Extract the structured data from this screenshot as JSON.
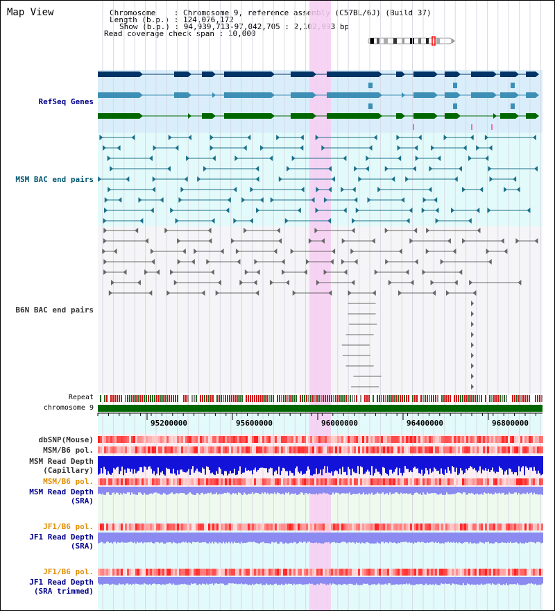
{
  "map_title": "Map View",
  "info": {
    "chromosome_label": "Chromosome",
    "chromosome_value": "Chromosome 9, reference assembly (C57BL/6J) (Build 37)",
    "length_label": "Length (b.p.)",
    "length_value": "124,076,172",
    "show_label": "Show (b.p.)",
    "show_value": "94,939,713-97,042,705 : 2,102,993 bp",
    "coverage_label": "Read coverage check span",
    "coverage_value": "10,000"
  },
  "tracks": {
    "refseq": "RefSeq Genes",
    "msm_bac": "MSM BAC end pairs",
    "b6n_bac": "B6N BAC end pairs",
    "repeat": "Repeat",
    "chromosome": "chromosome 9",
    "dbsnp": "dbSNP(Mouse)",
    "msm_b6_pol_1": "MSM/B6 pol.",
    "msm_depth_cap": "MSM Read Depth\n(Capillary)",
    "msm_b6_pol_2": "MSM/B6 pol.",
    "msm_depth_sra": "MSM Read Depth\n(SRA)",
    "jf1_b6_pol_1": "JF1/B6 pol.",
    "jf1_depth_sra": "JF1 Read Depth\n(SRA)",
    "jf1_b6_pol_2": "JF1/B6 pol.",
    "jf1_depth_trim": "JF1 Read Depth\n(SRA trimmed)"
  },
  "axis": {
    "ticks": [
      "95200000",
      "95600000",
      "96000000",
      "96400000",
      "96800000"
    ]
  },
  "colors": {
    "refseq_dark": "#003366",
    "refseq_mid": "#3d8fb5",
    "refseq_green": "#006600",
    "msm_bac": "#1b6f8a",
    "b6n_bac": "#666666",
    "highlight": "#f7cdf2",
    "label_blue": "#00008b",
    "label_teal": "#00566f",
    "label_gray": "#333333",
    "label_orange": "#e08c00",
    "depth_blue": "#1212d8",
    "depth_light": "#8a8af0"
  }
}
